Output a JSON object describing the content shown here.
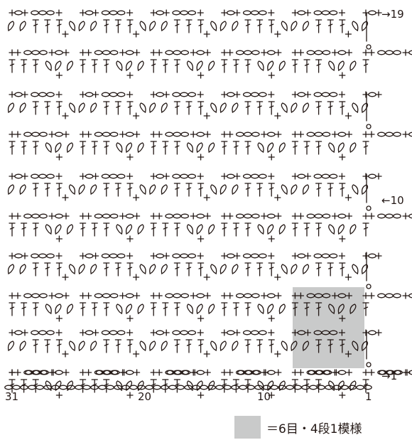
{
  "row_labels": {
    "top": "→19",
    "middle": "←10",
    "bottom": "→1"
  },
  "stitch_numbers": {
    "left": "31",
    "mid1": "20",
    "mid2": "10",
    "right": "1"
  },
  "legend": {
    "text": "＝6目・4段1模様",
    "swatch_color": "#c9caca"
  },
  "colors": {
    "ink": "#231815",
    "highlight": "#c9caca"
  }
}
